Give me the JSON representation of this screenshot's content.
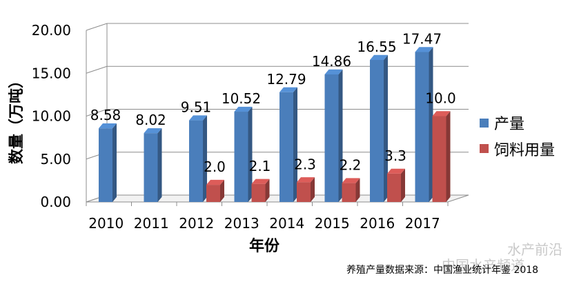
{
  "chart_data": {
    "type": "bar",
    "title": "",
    "xlabel": "年份",
    "ylabel": "数量（万吨）",
    "ylim": [
      0,
      20
    ],
    "yticks": [
      "0.00",
      "5.00",
      "10.00",
      "15.00",
      "20.00"
    ],
    "categories": [
      "2010",
      "2011",
      "2012",
      "2013",
      "2014",
      "2015",
      "2016",
      "2017"
    ],
    "series": [
      {
        "name": "产量",
        "color": "#4a7ebb",
        "values": [
          8.58,
          8.02,
          9.51,
          10.52,
          12.79,
          14.86,
          16.55,
          17.47
        ],
        "labels": [
          "8.58",
          "8.02",
          "9.51",
          "10.52",
          "12.79",
          "14.86",
          "16.55",
          "17.47"
        ]
      },
      {
        "name": "饲料用量",
        "color": "#c0504d",
        "values": [
          null,
          null,
          2.0,
          2.1,
          2.3,
          2.2,
          3.3,
          10.0
        ],
        "labels": [
          "",
          "",
          "2.0",
          "2.1",
          "2.3",
          "2.2",
          "3.3",
          "10.0"
        ]
      }
    ],
    "grid": true,
    "legend": "right",
    "three_d": true
  },
  "source_note": "养殖产量数据来源：中国渔业统计年鉴 2018",
  "watermark": {
    "line1": "水产前沿",
    "line2": "中国水产频道"
  }
}
